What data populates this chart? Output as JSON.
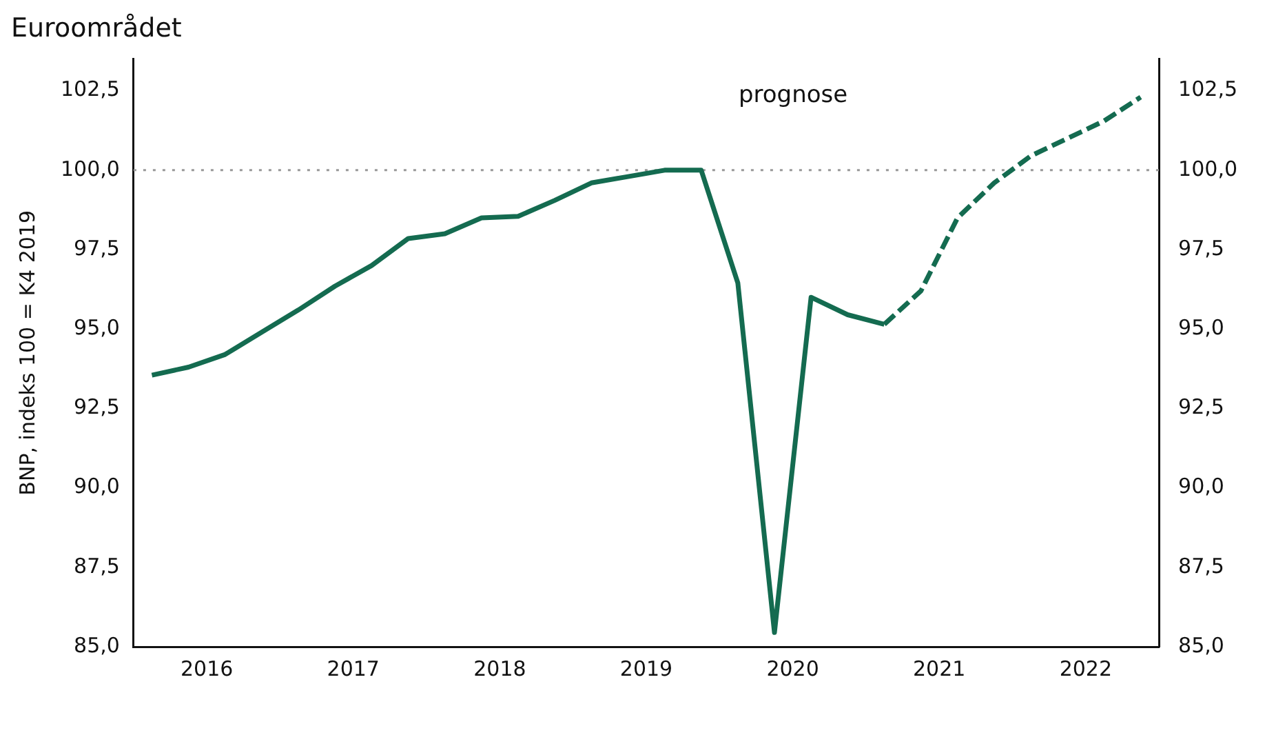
{
  "chart_data": {
    "type": "line",
    "title": "Euroområdet",
    "ylabel": "BNP, indeks 100 = K4 2019",
    "annotations": [
      "prognose"
    ],
    "xlim": [
      2016,
      2023
    ],
    "xticks": [
      {
        "value": 2016.5,
        "label": "2016"
      },
      {
        "value": 2017.5,
        "label": "2017"
      },
      {
        "value": 2018.5,
        "label": "2018"
      },
      {
        "value": 2019.5,
        "label": "2019"
      },
      {
        "value": 2020.5,
        "label": "2020"
      },
      {
        "value": 2021.5,
        "label": "2021"
      },
      {
        "value": 2022.5,
        "label": "2022"
      }
    ],
    "ylim": [
      85,
      103.5
    ],
    "yticks": [
      {
        "value": 85,
        "label": "85,0"
      },
      {
        "value": 87.5,
        "label": "87,5"
      },
      {
        "value": 90,
        "label": "90,0"
      },
      {
        "value": 92.5,
        "label": "92,5"
      },
      {
        "value": 95,
        "label": "95,0"
      },
      {
        "value": 97.5,
        "label": "97,5"
      },
      {
        "value": 100,
        "label": "100,0"
      },
      {
        "value": 102.5,
        "label": "102,5"
      }
    ],
    "y2lim": [
      85,
      103.5
    ],
    "y2ticks": [
      {
        "value": 85,
        "label": "85,0"
      },
      {
        "value": 87.5,
        "label": "87,5"
      },
      {
        "value": 90,
        "label": "90,0"
      },
      {
        "value": 92.5,
        "label": "92,5"
      },
      {
        "value": 95,
        "label": "95,0"
      },
      {
        "value": 97.5,
        "label": "97,5"
      },
      {
        "value": 100,
        "label": "100,0"
      },
      {
        "value": 102.5,
        "label": "102,5"
      }
    ],
    "grid": false,
    "legend": false,
    "marker": "none",
    "ref_lines": [
      {
        "axis": "y",
        "value": 100,
        "color": "#999999",
        "line_style": "dotted"
      }
    ],
    "series": [
      {
        "type": "line",
        "color": "#146b50",
        "line_style": "solid",
        "x": [
          2016.125,
          2016.375,
          2016.625,
          2016.875,
          2017.125,
          2017.375,
          2017.625,
          2017.875,
          2018.125,
          2018.375,
          2018.625,
          2018.875,
          2019.125,
          2019.375,
          2019.625,
          2019.875,
          2020.125,
          2020.375,
          2020.625,
          2020.875,
          2021.125
        ],
        "values": [
          93.55,
          93.8,
          94.2,
          94.9,
          95.6,
          96.35,
          97.0,
          97.85,
          98.0,
          98.5,
          98.55,
          99.05,
          99.6,
          99.8,
          100.0,
          100.0,
          96.45,
          85.45,
          96.0,
          95.45,
          95.15
        ]
      },
      {
        "type": "line",
        "color": "#146b50",
        "line_style": "dashed",
        "x": [
          2021.125,
          2021.375,
          2021.625,
          2021.875,
          2022.125,
          2022.375,
          2022.625,
          2022.875
        ],
        "values": [
          95.15,
          96.2,
          98.5,
          99.6,
          100.45,
          101.0,
          101.55,
          102.3
        ]
      }
    ]
  }
}
